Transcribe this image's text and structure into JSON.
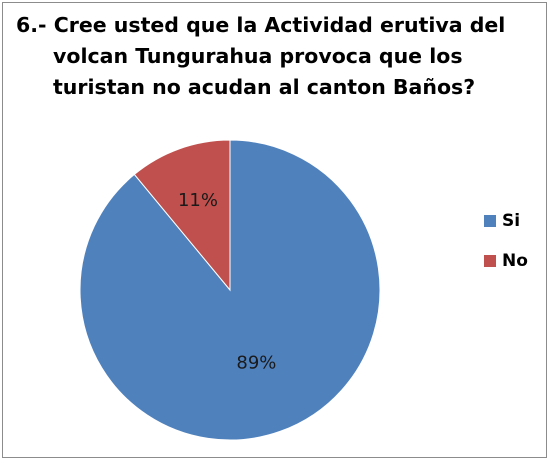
{
  "title_lines": [
    "6.- Cree usted que la Actividad erutiva del",
    "volcan  Tungurahua provoca que los",
    "turistan no acudan al canton Baños?"
  ],
  "chart_data": {
    "type": "pie",
    "title": "6.- Cree usted que la Actividad erutiva del volcan  Tungurahua provoca que los turistan no acudan al canton Baños?",
    "categories": [
      "Si",
      "No"
    ],
    "values": [
      89,
      11
    ],
    "data_labels": [
      "89%",
      "11%"
    ],
    "colors": [
      "#4f81bd",
      "#c0504d"
    ],
    "legend_position": "right"
  }
}
